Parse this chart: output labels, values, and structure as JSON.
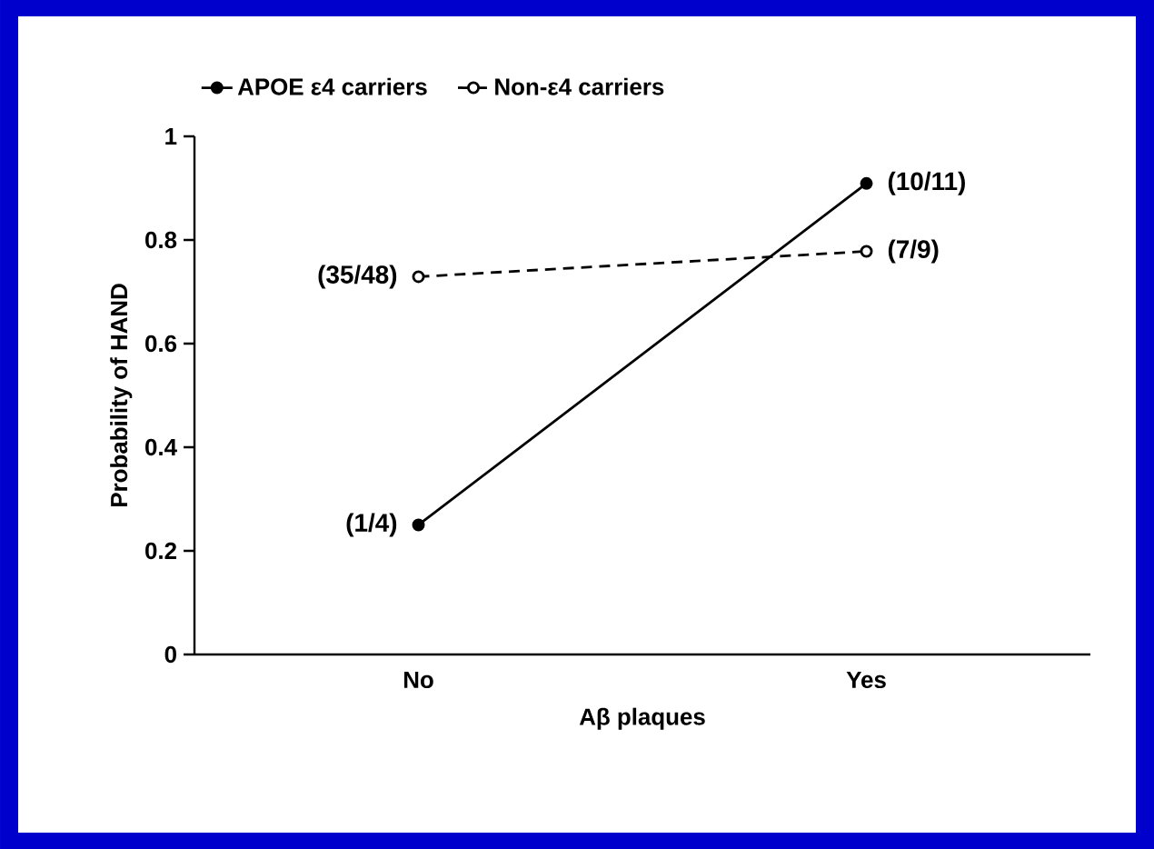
{
  "chart_data": {
    "type": "line",
    "xlabel": "Aβ plaques",
    "ylabel": "Probability of HAND",
    "categories": [
      "No",
      "Yes"
    ],
    "series": [
      {
        "name": "APOE ε4 carriers",
        "color": "#000000",
        "values": [
          0.25,
          0.909
        ],
        "value_labels": [
          "(1/4)",
          "(10/11)"
        ],
        "line_style": "solid"
      },
      {
        "name": "Non-ε4 carriers",
        "color": "#000000",
        "values": [
          0.729,
          0.778
        ],
        "value_labels": [
          "(35/48)",
          "(7/9)"
        ],
        "line_style": "dashed"
      }
    ],
    "ylim": [
      0,
      1
    ],
    "yticks": [
      0,
      0.2,
      0.4,
      0.6,
      0.8,
      1
    ],
    "marker": "circle",
    "legend": "top",
    "grid": false
  }
}
